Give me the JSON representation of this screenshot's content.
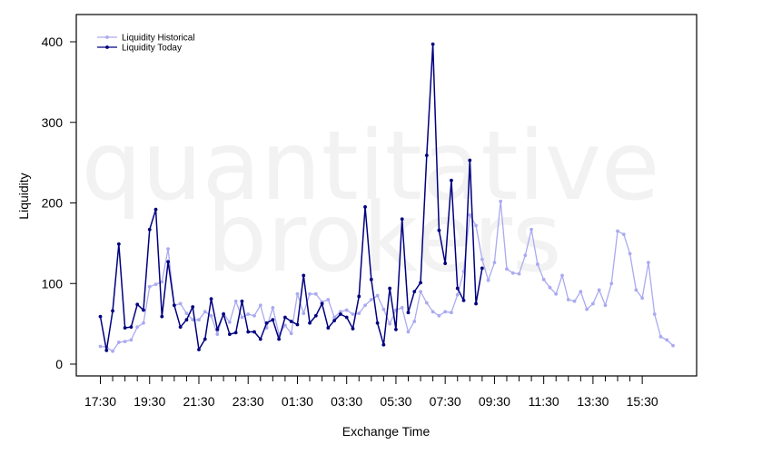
{
  "watermark": {
    "line1": "quantitative",
    "line2": "brokers"
  },
  "chart_data": {
    "type": "line",
    "title": "",
    "xlabel": "Exchange Time",
    "ylabel": "Liquidity",
    "ylim": [
      -15,
      435
    ],
    "y_ticks": [
      0,
      100,
      200,
      300,
      400
    ],
    "x_tick_labels": [
      "17:30",
      "19:30",
      "21:30",
      "23:30",
      "01:30",
      "03:30",
      "05:30",
      "07:30",
      "09:30",
      "11:30",
      "13:30",
      "15:30"
    ],
    "x_tick_label_every": 4,
    "legend_position": "top-left",
    "grid": false,
    "series": [
      {
        "name": "Liquidity Historical",
        "color": "#aaaaf0",
        "values": [
          22,
          21,
          16,
          27,
          28,
          30,
          46,
          51,
          96,
          99,
          102,
          143,
          73,
          75,
          63,
          55,
          55,
          65,
          60,
          37,
          63,
          52,
          78,
          58,
          62,
          60,
          73,
          45,
          70,
          37,
          48,
          38,
          87,
          63,
          87,
          87,
          77,
          80,
          58,
          65,
          67,
          62,
          63,
          73,
          80,
          85,
          68,
          50,
          67,
          70,
          40,
          53,
          90,
          76,
          65,
          60,
          65,
          64,
          86,
          115,
          185,
          172,
          130,
          104,
          126,
          202,
          118,
          113,
          112,
          135,
          167,
          124,
          105,
          95,
          87,
          110,
          80,
          78,
          90,
          68,
          75,
          92,
          73,
          100,
          165,
          161,
          137,
          92,
          82,
          126,
          62,
          34,
          30,
          23
        ]
      },
      {
        "name": "Liquidity Today",
        "color": "#00007f",
        "values": [
          59,
          17,
          66,
          149,
          45,
          46,
          74,
          67,
          167,
          192,
          59,
          127,
          73,
          46,
          55,
          71,
          18,
          31,
          81,
          43,
          62,
          37,
          39,
          78,
          40,
          40,
          31,
          51,
          55,
          31,
          58,
          53,
          49,
          110,
          51,
          60,
          75,
          45,
          54,
          62,
          58,
          44,
          84,
          195,
          105,
          51,
          24,
          94,
          43,
          180,
          64,
          90,
          101,
          259,
          397,
          166,
          125,
          228,
          94,
          79,
          253,
          75,
          119
        ]
      }
    ]
  }
}
